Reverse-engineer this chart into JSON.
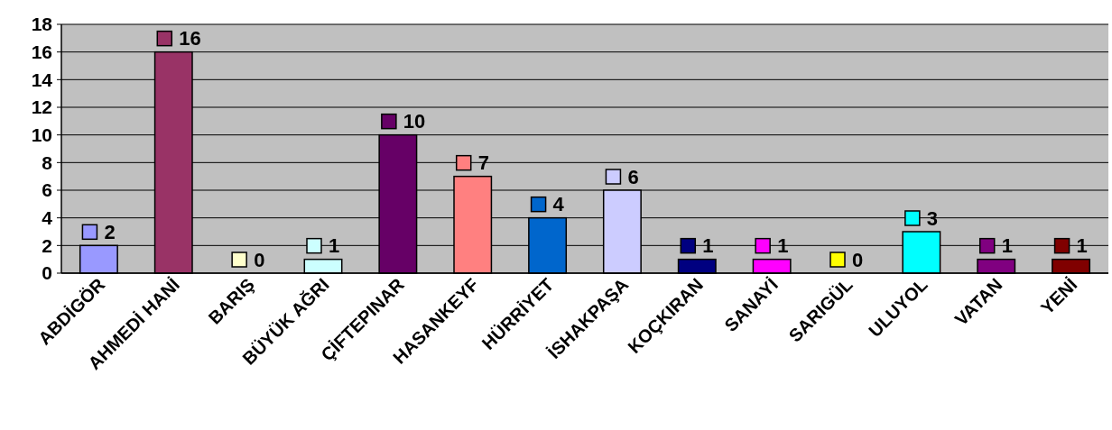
{
  "chart_data": {
    "type": "bar",
    "categories": [
      "ABDİGÖR",
      "AHMEDİ HANİ",
      "BARIŞ",
      "BÜYÜK AĞRI",
      "ÇİFTEPINAR",
      "HASANKEYF",
      "HÜRRİYET",
      "İSHAKPAŞA",
      "KOÇKIRAN",
      "SANAYİ",
      "SARIGÜL",
      "ULUYOL",
      "VATAN",
      "YENİ"
    ],
    "values": [
      2,
      16,
      0,
      1,
      10,
      7,
      4,
      6,
      1,
      1,
      0,
      3,
      1,
      1
    ],
    "colors": [
      "#9999ff",
      "#993366",
      "#ffffcc",
      "#ccffff",
      "#660066",
      "#ff8080",
      "#0066cc",
      "#ccccff",
      "#000080",
      "#ff00ff",
      "#ffff00",
      "#00ffff",
      "#800080",
      "#800000"
    ],
    "ylim": [
      0,
      18
    ],
    "yticks": [
      0,
      2,
      4,
      6,
      8,
      10,
      12,
      14,
      16,
      18
    ],
    "grid": "y",
    "data_labels": true
  }
}
